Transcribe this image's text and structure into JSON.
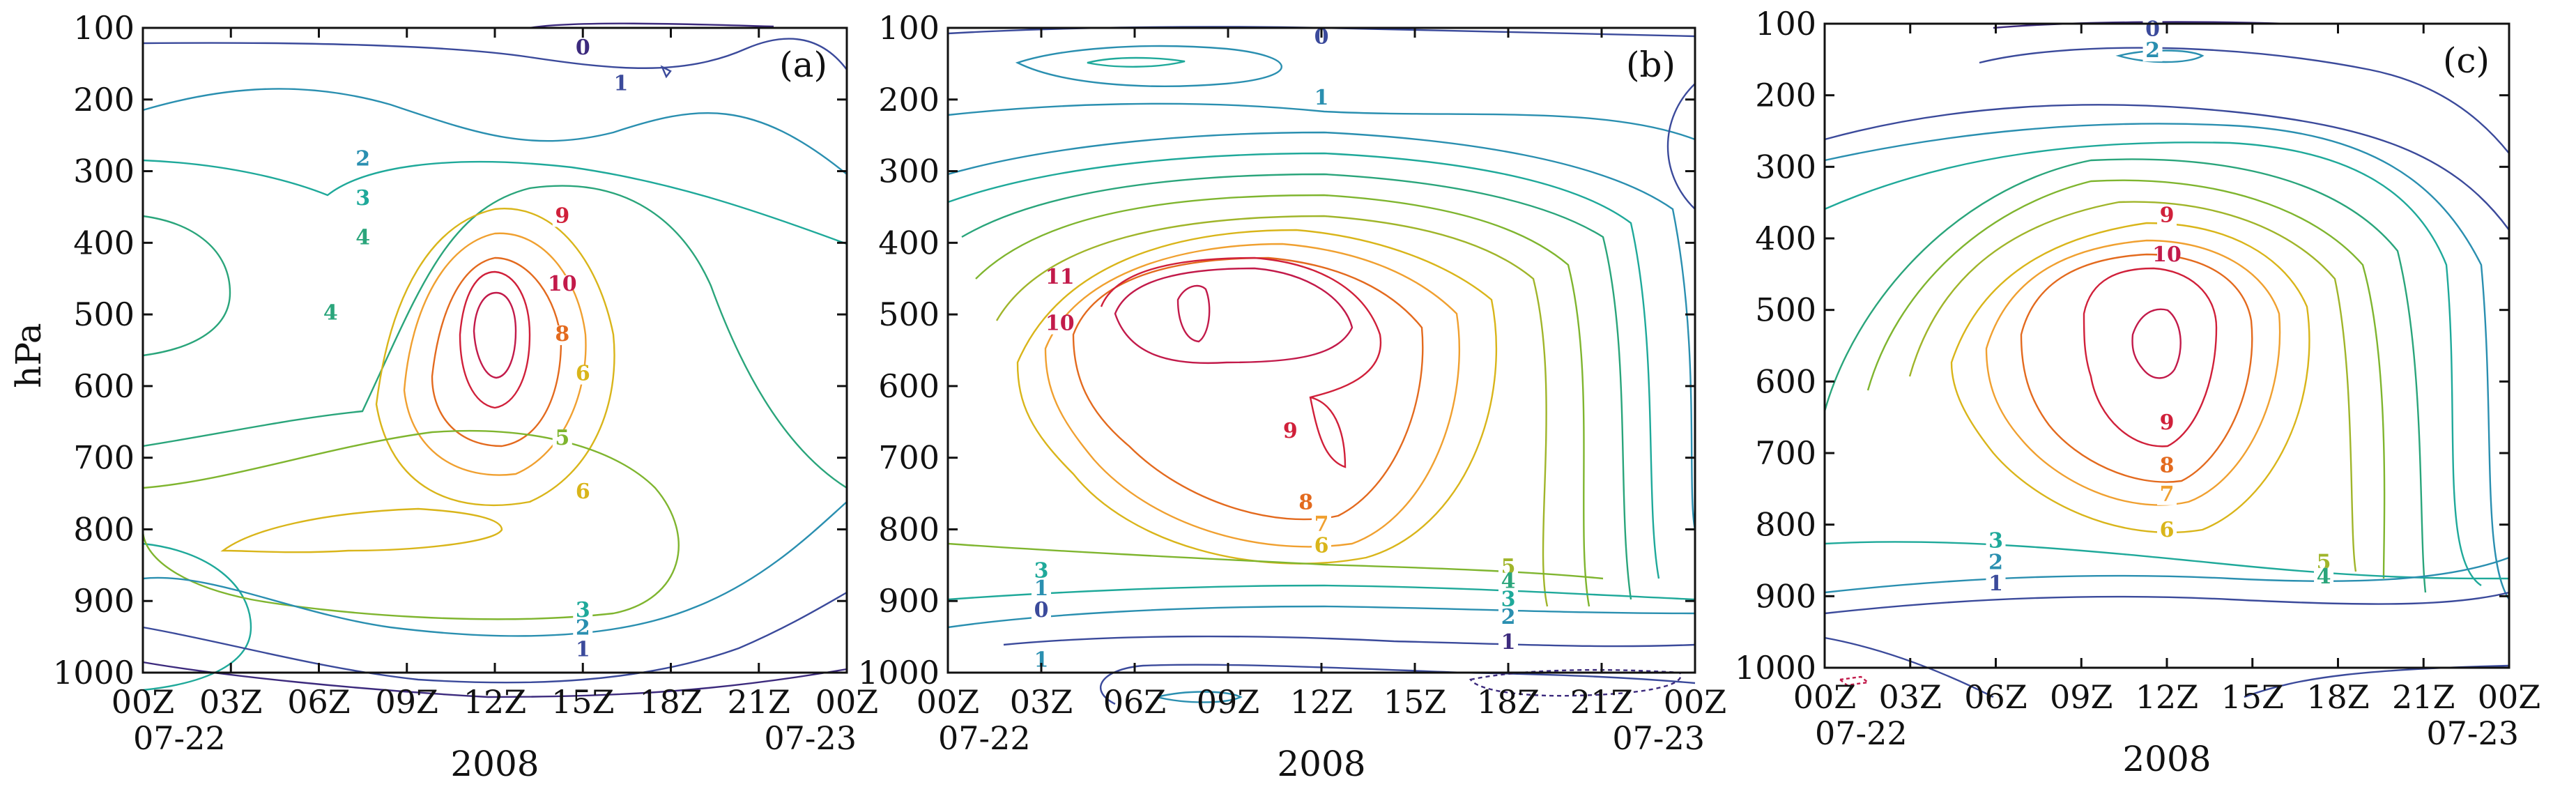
{
  "chart_data": [
    {
      "type": "contour",
      "panel_label": "(a)",
      "ylabel": "hPa",
      "xlabel": "2008",
      "x_ticks": [
        "00Z",
        "03Z",
        "06Z",
        "09Z",
        "12Z",
        "15Z",
        "18Z",
        "21Z",
        "00Z"
      ],
      "x_dates": [
        "07-22",
        "07-23"
      ],
      "y_ticks": [
        "100",
        "200",
        "300",
        "400",
        "500",
        "600",
        "700",
        "800",
        "900",
        "1000"
      ],
      "y_range": [
        100,
        1000
      ],
      "y_inverted": true,
      "contour_labels": [
        {
          "text": "0",
          "x": 15.0,
          "y": 135,
          "color": "#3c2a7d"
        },
        {
          "text": "1",
          "x": 16.3,
          "y": 185,
          "color": "#3b4a9b"
        },
        {
          "text": "2",
          "x": 7.5,
          "y": 290,
          "color": "#2a8fb0"
        },
        {
          "text": "3",
          "x": 7.5,
          "y": 345,
          "color": "#1fa99a"
        },
        {
          "text": "4",
          "x": 7.5,
          "y": 400,
          "color": "#2aa57b"
        },
        {
          "text": "4",
          "x": 6.4,
          "y": 505,
          "color": "#2aa57b"
        },
        {
          "text": "9",
          "x": 14.3,
          "y": 370,
          "color": "#d0203a"
        },
        {
          "text": "10",
          "x": 14.3,
          "y": 465,
          "color": "#c21a4a"
        },
        {
          "text": "8",
          "x": 14.3,
          "y": 535,
          "color": "#e36a1e"
        },
        {
          "text": "6",
          "x": 15.0,
          "y": 590,
          "color": "#d9b51a"
        },
        {
          "text": "5",
          "x": 14.3,
          "y": 680,
          "color": "#7fb52f"
        },
        {
          "text": "6",
          "x": 15.0,
          "y": 755,
          "color": "#d9b51a"
        },
        {
          "text": "3",
          "x": 15.0,
          "y": 920,
          "color": "#1fa99a"
        },
        {
          "text": "2",
          "x": 15.0,
          "y": 945,
          "color": "#2a8fb0"
        },
        {
          "text": "1",
          "x": 15.0,
          "y": 975,
          "color": "#3b4a9b"
        }
      ]
    },
    {
      "type": "contour",
      "panel_label": "(b)",
      "xlabel": "2008",
      "x_ticks": [
        "00Z",
        "03Z",
        "06Z",
        "09Z",
        "12Z",
        "15Z",
        "18Z",
        "21Z",
        "00Z"
      ],
      "x_dates": [
        "07-22",
        "07-23"
      ],
      "y_ticks": [
        "100",
        "200",
        "300",
        "400",
        "500",
        "600",
        "700",
        "800",
        "900",
        "1000"
      ],
      "y_range": [
        100,
        1000
      ],
      "y_inverted": true,
      "contour_labels": [
        {
          "text": "0",
          "x": 12.0,
          "y": 120,
          "color": "#3b4a9b"
        },
        {
          "text": "1",
          "x": 12.0,
          "y": 205,
          "color": "#2a8fb0"
        },
        {
          "text": "11",
          "x": 3.6,
          "y": 455,
          "color": "#c21a4a"
        },
        {
          "text": "10",
          "x": 3.6,
          "y": 520,
          "color": "#c21a4a"
        },
        {
          "text": "9",
          "x": 11.0,
          "y": 670,
          "color": "#d0203a"
        },
        {
          "text": "8",
          "x": 11.5,
          "y": 770,
          "color": "#e36a1e"
        },
        {
          "text": "7",
          "x": 12.0,
          "y": 800,
          "color": "#f0a030"
        },
        {
          "text": "6",
          "x": 12.0,
          "y": 830,
          "color": "#d9b51a"
        },
        {
          "text": "5",
          "x": 18.0,
          "y": 860,
          "color": "#a0b52a"
        },
        {
          "text": "4",
          "x": 18.0,
          "y": 880,
          "color": "#2aa57b"
        },
        {
          "text": "3",
          "x": 18.0,
          "y": 905,
          "color": "#1fa99a"
        },
        {
          "text": "2",
          "x": 18.0,
          "y": 930,
          "color": "#2a8fb0"
        },
        {
          "text": "3",
          "x": 3.0,
          "y": 865,
          "color": "#1fa99a"
        },
        {
          "text": "1",
          "x": 3.0,
          "y": 890,
          "color": "#2a8fb0"
        },
        {
          "text": "0",
          "x": 3.0,
          "y": 920,
          "color": "#3b4a9b"
        },
        {
          "text": "1",
          "x": 18.0,
          "y": 965,
          "color": "#3c2a7d"
        },
        {
          "text": "1",
          "x": 3.0,
          "y": 990,
          "color": "#2a8fb0"
        }
      ]
    },
    {
      "type": "contour",
      "panel_label": "(c)",
      "xlabel": "2008",
      "x_ticks": [
        "00Z",
        "03Z",
        "06Z",
        "09Z",
        "12Z",
        "15Z",
        "18Z",
        "21Z",
        "00Z"
      ],
      "x_dates": [
        "07-22",
        "07-23"
      ],
      "y_ticks": [
        "100",
        "200",
        "300",
        "400",
        "500",
        "600",
        "700",
        "800",
        "900",
        "1000"
      ],
      "y_range": [
        100,
        1000
      ],
      "y_inverted": true,
      "contour_labels": [
        {
          "text": "0",
          "x": 11.5,
          "y": 115,
          "color": "#3b4a9b"
        },
        {
          "text": "2",
          "x": 11.5,
          "y": 145,
          "color": "#2a8fb0"
        },
        {
          "text": "9",
          "x": 12.0,
          "y": 375,
          "color": "#d0203a"
        },
        {
          "text": "10",
          "x": 12.0,
          "y": 430,
          "color": "#c21a4a"
        },
        {
          "text": "9",
          "x": 12.0,
          "y": 665,
          "color": "#d0203a"
        },
        {
          "text": "8",
          "x": 12.0,
          "y": 725,
          "color": "#e36a1e"
        },
        {
          "text": "7",
          "x": 12.0,
          "y": 765,
          "color": "#f0a030"
        },
        {
          "text": "6",
          "x": 12.0,
          "y": 815,
          "color": "#d9b51a"
        },
        {
          "text": "5",
          "x": 17.5,
          "y": 860,
          "color": "#a0b52a"
        },
        {
          "text": "4",
          "x": 17.5,
          "y": 880,
          "color": "#2aa57b"
        },
        {
          "text": "3",
          "x": 6.0,
          "y": 830,
          "color": "#1fa99a"
        },
        {
          "text": "2",
          "x": 6.0,
          "y": 860,
          "color": "#2a8fb0"
        },
        {
          "text": "1",
          "x": 6.0,
          "y": 890,
          "color": "#3b4a9b"
        }
      ]
    }
  ]
}
